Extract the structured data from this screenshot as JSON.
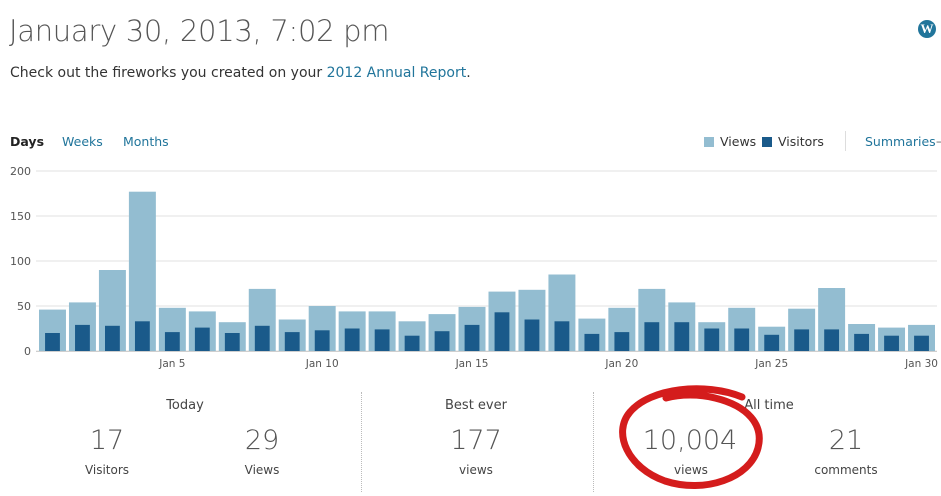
{
  "header": {
    "title": "January 30, 2013, 7:02 pm",
    "subtitle_prefix": "Check out the fireworks you created on your ",
    "subtitle_link": "2012 Annual Report",
    "subtitle_suffix": ".",
    "logo_letter": "W"
  },
  "tabs": [
    {
      "label": "Days",
      "active": true
    },
    {
      "label": "Weeks",
      "active": false
    },
    {
      "label": "Months",
      "active": false
    }
  ],
  "legend": {
    "views_label": "Views",
    "visitors_label": "Visitors",
    "summaries_label": "Summaries",
    "summaries_arrow": "→"
  },
  "colors": {
    "views": "#93bdd1",
    "visitors": "#1a5a8a",
    "link": "#21759b",
    "annotation": "#d41c1c"
  },
  "chart_data": {
    "type": "bar",
    "series": [
      {
        "name": "Views",
        "values": [
          46,
          54,
          90,
          177,
          48,
          44,
          32,
          69,
          35,
          50,
          44,
          44,
          33,
          41,
          49,
          66,
          68,
          85,
          36,
          48,
          69,
          54,
          32,
          48,
          27,
          47,
          70,
          30,
          26,
          29
        ]
      },
      {
        "name": "Visitors",
        "values": [
          20,
          29,
          28,
          33,
          21,
          26,
          20,
          28,
          21,
          23,
          25,
          24,
          17,
          22,
          29,
          43,
          35,
          33,
          19,
          21,
          32,
          32,
          25,
          25,
          18,
          24,
          24,
          19,
          17,
          17
        ]
      }
    ],
    "x": [
      "Jan 1",
      "Jan 2",
      "Jan 3",
      "Jan 4",
      "Jan 5",
      "Jan 6",
      "Jan 7",
      "Jan 8",
      "Jan 9",
      "Jan 10",
      "Jan 11",
      "Jan 12",
      "Jan 13",
      "Jan 14",
      "Jan 15",
      "Jan 16",
      "Jan 17",
      "Jan 18",
      "Jan 19",
      "Jan 20",
      "Jan 21",
      "Jan 22",
      "Jan 23",
      "Jan 24",
      "Jan 25",
      "Jan 26",
      "Jan 27",
      "Jan 28",
      "Jan 29",
      "Jan 30"
    ],
    "x_tick_labels": [
      {
        "index": 4,
        "label": "Jan 5"
      },
      {
        "index": 9,
        "label": "Jan 10"
      },
      {
        "index": 14,
        "label": "Jan 15"
      },
      {
        "index": 19,
        "label": "Jan 20"
      },
      {
        "index": 24,
        "label": "Jan 25"
      },
      {
        "index": 29,
        "label": "Jan 30"
      }
    ],
    "y_ticks": [
      "200",
      "150",
      "100",
      "50",
      "0"
    ],
    "ylim": [
      0,
      200
    ],
    "grid": true,
    "legend_position": "top-right"
  },
  "stats": {
    "today": {
      "heading": "Today",
      "visitors_value": "17",
      "visitors_label": "Visitors",
      "views_value": "29",
      "views_label": "Views"
    },
    "best_ever": {
      "heading": "Best ever",
      "value": "177",
      "label": "views"
    },
    "all_time": {
      "heading": "All time",
      "views_value": "10,004",
      "views_label": "views",
      "comments_value": "21",
      "comments_label": "comments"
    }
  }
}
